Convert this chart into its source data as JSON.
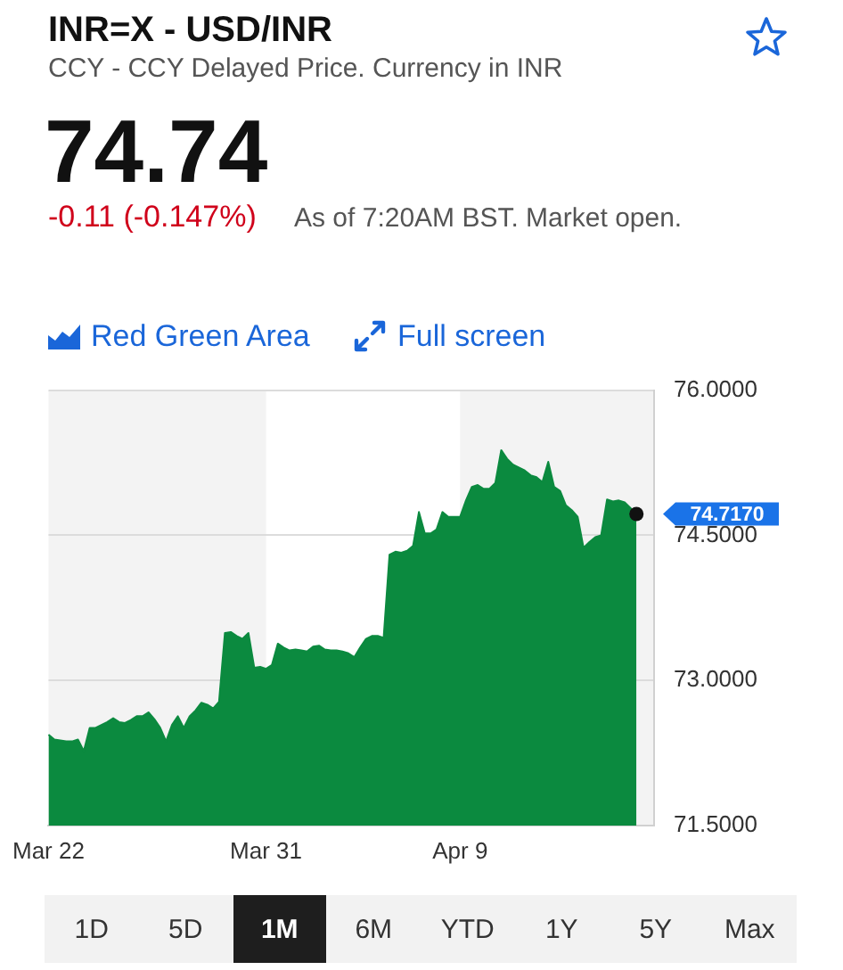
{
  "chart_data": {
    "type": "area",
    "title": "INR=X - USD/INR",
    "subtitle": "CCY - CCY Delayed Price. Currency in INR",
    "categories": [
      "Mar 22",
      null,
      null,
      null,
      null,
      null,
      null,
      null,
      null,
      null,
      null,
      null,
      null,
      null,
      null,
      null,
      null,
      null,
      null,
      null,
      null,
      null,
      null,
      null,
      null,
      null,
      null,
      null,
      null,
      null,
      null,
      null,
      null,
      null,
      null,
      null,
      null,
      "Mar 31",
      null,
      null,
      null,
      null,
      null,
      null,
      null,
      null,
      null,
      null,
      null,
      null,
      null,
      null,
      null,
      null,
      null,
      null,
      null,
      null,
      null,
      null,
      null,
      null,
      null,
      null,
      null,
      null,
      null,
      null,
      null,
      null,
      "Apr 9",
      null,
      null,
      null,
      null,
      null,
      null,
      null,
      null,
      null,
      null,
      null,
      null,
      null,
      null,
      null,
      null,
      null,
      null,
      null,
      null,
      null,
      null,
      null,
      null,
      null,
      null,
      null,
      null,
      null,
      null,
      null,
      null,
      null
    ],
    "values": [
      72.44,
      72.39,
      72.38,
      72.37,
      72.37,
      72.39,
      72.27,
      72.51,
      72.51,
      72.54,
      72.57,
      72.61,
      72.57,
      72.56,
      72.59,
      72.63,
      72.63,
      72.67,
      72.6,
      72.51,
      72.37,
      72.54,
      72.63,
      72.51,
      72.63,
      72.69,
      72.77,
      72.75,
      72.71,
      72.78,
      73.49,
      73.5,
      73.46,
      73.43,
      73.49,
      73.13,
      73.14,
      73.12,
      73.16,
      73.38,
      73.34,
      73.31,
      73.32,
      73.31,
      73.3,
      73.35,
      73.36,
      73.32,
      73.31,
      73.31,
      73.3,
      73.28,
      73.24,
      73.34,
      73.43,
      73.46,
      73.46,
      73.44,
      74.3,
      74.33,
      74.32,
      74.34,
      74.39,
      74.74,
      74.52,
      74.52,
      74.56,
      74.74,
      74.69,
      74.69,
      74.69,
      74.86,
      75.0,
      75.02,
      74.98,
      74.98,
      75.04,
      75.38,
      75.29,
      75.23,
      75.2,
      75.17,
      75.12,
      75.1,
      75.05,
      75.26,
      75.0,
      74.96,
      74.81,
      74.76,
      74.69,
      74.37,
      74.43,
      74.48,
      74.5,
      74.87,
      74.85,
      74.86,
      74.84,
      74.78,
      74.72,
      null,
      null,
      null
    ],
    "color": "#0b8a3f",
    "ylim": [
      71.5,
      76
    ],
    "yticks": [
      {
        "value": 71.5,
        "label": "71.5000"
      },
      {
        "value": 73,
        "label": "73.0000"
      },
      {
        "value": 74.5,
        "label": "74.5000"
      },
      {
        "value": 76,
        "label": "76.0000"
      }
    ],
    "grid": "y",
    "legend": false,
    "bands": [
      {
        "axis": "x",
        "from": "Mar 31",
        "to": "Apr 9",
        "color": "#ffffff"
      }
    ],
    "annotations": [
      "74.74",
      "-0.11 (-0.147%)",
      "As of 7:20AM BST. Market open.",
      "Red Green Area",
      "Full screen",
      "1D",
      "5D",
      "1M",
      "6M",
      "YTD",
      "1Y",
      "5Y",
      "Max",
      "74.7170"
    ]
  }
}
